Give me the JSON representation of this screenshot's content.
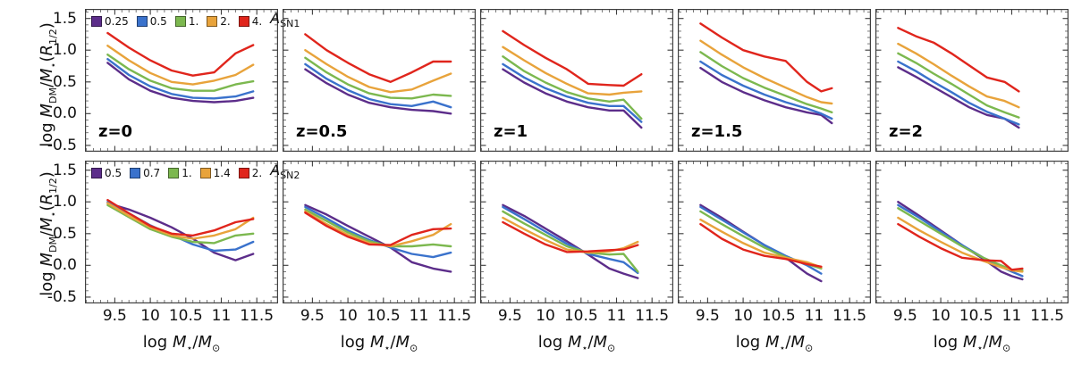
{
  "figure": {
    "xlabel_html": "log <i>M</i><sub>⋆</sub>/<i>M</i><sub>⊙</sub>",
    "ylabel_html": "log <i>M</i><sub>DM</sub>/<i>M</i><sub>⋆</sub>(<i>R</i><sub>1/2</sub>)"
  },
  "chart_data": {
    "type": "line",
    "grid": {
      "rows": 2,
      "cols": 5
    },
    "xlabel": "log M*/Msun",
    "ylabel": "log M_DM/M_*(R_1/2)",
    "xlim": [
      9.08,
      11.8
    ],
    "ylim": [
      -0.6,
      1.65
    ],
    "xticks": [
      9.5,
      10,
      10.5,
      11,
      11.5
    ],
    "xtick_labels": [
      "9.5",
      "10",
      "10.5",
      "11",
      "11.5"
    ],
    "yticks": [
      1.5,
      1.0,
      0.5,
      0.0,
      -0.5
    ],
    "ytick_labels": [
      "1.5",
      "1.0",
      "0.5",
      "0.0",
      "-0.5"
    ],
    "minor_tick_step": 0.1,
    "legend_position": "top-left-panel-inside",
    "colors": {
      "purple": "#5c2d8a",
      "blue": "#3a72cc",
      "green": "#7cb84f",
      "orange": "#e8a33b",
      "red": "#e0251c"
    },
    "series_order": [
      "purple",
      "blue",
      "green",
      "orange",
      "red"
    ],
    "rows": [
      {
        "legend": {
          "title_html": "<i>A</i><sub>SN1</sub>",
          "title_text": "A_SN1",
          "labels": [
            "0.25",
            "0.5",
            "1.",
            "2.",
            "4."
          ]
        },
        "panels": [
          {
            "label": "z=0",
            "x": [
              9.4,
              9.7,
              10.0,
              10.3,
              10.6,
              10.9,
              11.2,
              11.45
            ],
            "y": {
              "purple": [
                0.8,
                0.54,
                0.36,
                0.25,
                0.2,
                0.18,
                0.2,
                0.25
              ],
              "blue": [
                0.86,
                0.61,
                0.43,
                0.31,
                0.25,
                0.24,
                0.27,
                0.35
              ],
              "green": [
                0.93,
                0.7,
                0.52,
                0.4,
                0.36,
                0.36,
                0.46,
                0.51
              ],
              "orange": [
                1.07,
                0.84,
                0.64,
                0.5,
                0.46,
                0.52,
                0.61,
                0.77
              ],
              "red": [
                1.27,
                1.04,
                0.84,
                0.68,
                0.6,
                0.65,
                0.95,
                1.08
              ]
            }
          },
          {
            "label": "z=0.5",
            "x": [
              9.4,
              9.7,
              10.0,
              10.3,
              10.6,
              10.9,
              11.2,
              11.45
            ],
            "y": {
              "purple": [
                0.7,
                0.48,
                0.3,
                0.17,
                0.1,
                0.06,
                0.04,
                0.0
              ],
              "blue": [
                0.78,
                0.55,
                0.37,
                0.23,
                0.15,
                0.12,
                0.19,
                0.1
              ],
              "green": [
                0.88,
                0.65,
                0.46,
                0.32,
                0.25,
                0.24,
                0.3,
                0.28
              ],
              "orange": [
                1.0,
                0.78,
                0.58,
                0.42,
                0.34,
                0.38,
                0.52,
                0.63
              ],
              "red": [
                1.25,
                1.0,
                0.8,
                0.62,
                0.5,
                0.65,
                0.82,
                0.82
              ]
            }
          },
          {
            "label": "z=1",
            "x": [
              9.4,
              9.7,
              10.0,
              10.3,
              10.6,
              10.9,
              11.1,
              11.35
            ],
            "y": {
              "purple": [
                0.7,
                0.49,
                0.32,
                0.19,
                0.1,
                0.05,
                0.05,
                -0.22
              ],
              "blue": [
                0.78,
                0.57,
                0.4,
                0.27,
                0.17,
                0.12,
                0.12,
                -0.13
              ],
              "green": [
                0.9,
                0.67,
                0.49,
                0.34,
                0.24,
                0.19,
                0.22,
                -0.08
              ],
              "orange": [
                1.05,
                0.84,
                0.64,
                0.47,
                0.32,
                0.3,
                0.33,
                0.35
              ],
              "red": [
                1.3,
                1.08,
                0.88,
                0.7,
                0.47,
                0.45,
                0.44,
                0.62
              ]
            }
          },
          {
            "label": "z=1.5",
            "x": [
              9.4,
              9.7,
              10.0,
              10.3,
              10.6,
              10.9,
              11.1,
              11.25
            ],
            "y": {
              "purple": [
                0.72,
                0.5,
                0.34,
                0.21,
                0.1,
                0.02,
                -0.02,
                -0.15
              ],
              "blue": [
                0.82,
                0.61,
                0.44,
                0.3,
                0.18,
                0.08,
                0.0,
                -0.08
              ],
              "green": [
                0.97,
                0.75,
                0.56,
                0.41,
                0.28,
                0.15,
                0.08,
                0.02
              ],
              "orange": [
                1.15,
                0.93,
                0.73,
                0.56,
                0.41,
                0.26,
                0.18,
                0.16
              ],
              "red": [
                1.42,
                1.2,
                1.0,
                0.9,
                0.83,
                0.5,
                0.35,
                0.4
              ]
            }
          },
          {
            "label": "z=2",
            "x": [
              9.4,
              9.65,
              9.9,
              10.15,
              10.4,
              10.65,
              10.9,
              11.1
            ],
            "y": {
              "purple": [
                0.73,
                0.58,
                0.42,
                0.26,
                0.1,
                -0.02,
                -0.08,
                -0.22
              ],
              "blue": [
                0.82,
                0.67,
                0.5,
                0.34,
                0.17,
                0.03,
                -0.08,
                -0.17
              ],
              "green": [
                0.95,
                0.8,
                0.63,
                0.47,
                0.3,
                0.13,
                0.02,
                -0.06
              ],
              "orange": [
                1.1,
                0.95,
                0.78,
                0.6,
                0.43,
                0.27,
                0.2,
                0.1
              ],
              "red": [
                1.35,
                1.22,
                1.12,
                0.95,
                0.76,
                0.57,
                0.5,
                0.35
              ]
            }
          }
        ]
      },
      {
        "legend": {
          "title_html": "<i>A</i><sub>SN2</sub>",
          "title_text": "A_SN2",
          "labels": [
            "0.5",
            "0.7",
            "1.",
            "1.4",
            "2."
          ]
        },
        "panels": [
          {
            "label": "",
            "x": [
              9.4,
              9.7,
              10.0,
              10.3,
              10.6,
              10.9,
              11.2,
              11.45
            ],
            "y": {
              "purple": [
                0.98,
                0.88,
                0.75,
                0.6,
                0.42,
                0.2,
                0.08,
                0.18
              ],
              "blue": [
                1.0,
                0.82,
                0.63,
                0.48,
                0.33,
                0.23,
                0.25,
                0.37
              ],
              "green": [
                0.95,
                0.76,
                0.57,
                0.45,
                0.37,
                0.35,
                0.47,
                0.5
              ],
              "orange": [
                0.98,
                0.78,
                0.6,
                0.47,
                0.42,
                0.47,
                0.57,
                0.75
              ],
              "red": [
                1.03,
                0.82,
                0.62,
                0.5,
                0.47,
                0.55,
                0.68,
                0.73
              ]
            }
          },
          {
            "label": "",
            "x": [
              9.4,
              9.7,
              10.0,
              10.3,
              10.6,
              10.9,
              11.2,
              11.45
            ],
            "y": {
              "purple": [
                0.95,
                0.8,
                0.62,
                0.45,
                0.28,
                0.05,
                -0.05,
                -0.1
              ],
              "blue": [
                0.92,
                0.74,
                0.55,
                0.4,
                0.28,
                0.18,
                0.13,
                0.2
              ],
              "green": [
                0.88,
                0.7,
                0.52,
                0.38,
                0.3,
                0.3,
                0.33,
                0.3
              ],
              "orange": [
                0.85,
                0.65,
                0.48,
                0.35,
                0.3,
                0.38,
                0.48,
                0.65
              ],
              "red": [
                0.83,
                0.62,
                0.45,
                0.33,
                0.32,
                0.48,
                0.57,
                0.58
              ]
            }
          },
          {
            "label": "",
            "x": [
              9.4,
              9.7,
              10.0,
              10.3,
              10.6,
              10.9,
              11.1,
              11.3
            ],
            "y": {
              "purple": [
                0.95,
                0.78,
                0.58,
                0.38,
                0.17,
                -0.05,
                -0.13,
                -0.2
              ],
              "blue": [
                0.92,
                0.73,
                0.53,
                0.34,
                0.18,
                0.1,
                0.05,
                -0.12
              ],
              "green": [
                0.85,
                0.66,
                0.48,
                0.3,
                0.2,
                0.17,
                0.18,
                -0.1
              ],
              "orange": [
                0.75,
                0.57,
                0.4,
                0.25,
                0.2,
                0.22,
                0.27,
                0.37
              ],
              "red": [
                0.68,
                0.5,
                0.33,
                0.21,
                0.22,
                0.24,
                0.25,
                0.32
              ]
            }
          },
          {
            "label": "",
            "x": [
              9.4,
              9.7,
              10.0,
              10.3,
              10.6,
              10.9,
              11.1
            ],
            "y": {
              "purple": [
                0.95,
                0.75,
                0.53,
                0.32,
                0.12,
                -0.13,
                -0.25
              ],
              "blue": [
                0.92,
                0.72,
                0.52,
                0.32,
                0.15,
                0.0,
                -0.13
              ],
              "green": [
                0.85,
                0.65,
                0.46,
                0.28,
                0.13,
                0.02,
                -0.05
              ],
              "orange": [
                0.72,
                0.53,
                0.35,
                0.2,
                0.12,
                0.05,
                -0.03
              ],
              "red": [
                0.65,
                0.42,
                0.25,
                0.15,
                0.1,
                0.02,
                -0.02
              ]
            }
          },
          {
            "label": "",
            "x": [
              9.4,
              9.7,
              10.0,
              10.3,
              10.6,
              10.85,
              11.0,
              11.15
            ],
            "y": {
              "purple": [
                1.0,
                0.78,
                0.55,
                0.32,
                0.1,
                -0.1,
                -0.17,
                -0.22
              ],
              "blue": [
                0.95,
                0.75,
                0.53,
                0.32,
                0.12,
                -0.02,
                -0.1,
                -0.17
              ],
              "green": [
                0.9,
                0.7,
                0.5,
                0.3,
                0.12,
                0.0,
                -0.07,
                -0.08
              ],
              "orange": [
                0.75,
                0.55,
                0.37,
                0.2,
                0.07,
                -0.03,
                -0.08,
                -0.1
              ],
              "red": [
                0.65,
                0.45,
                0.27,
                0.12,
                0.08,
                0.07,
                -0.07,
                -0.05
              ]
            }
          }
        ]
      }
    ]
  }
}
